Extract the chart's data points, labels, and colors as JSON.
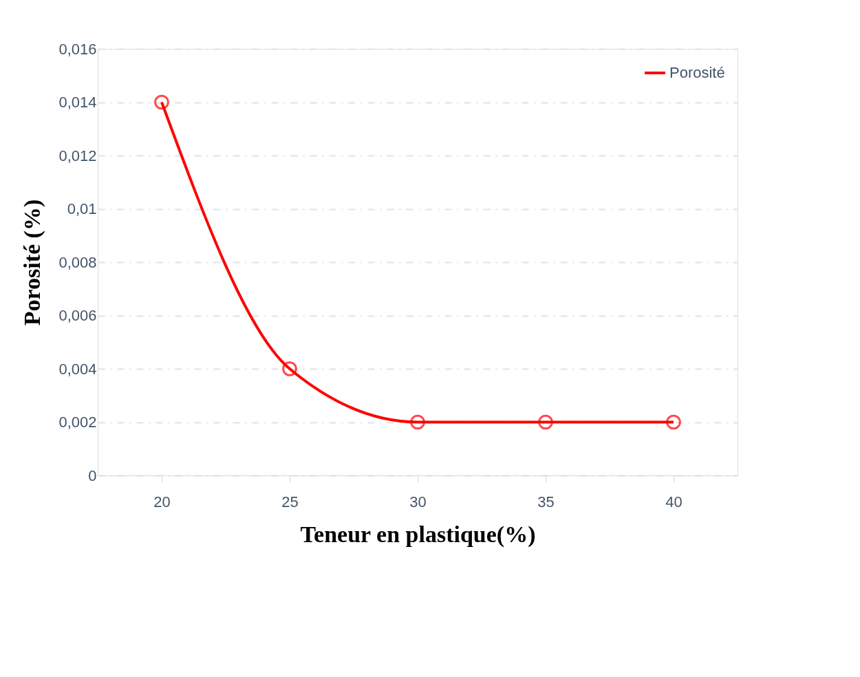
{
  "chart_data": {
    "type": "line",
    "xlabel": "Teneur en plastique(%)",
    "ylabel": "Porosité (%)",
    "categories": [
      "20",
      "25",
      "30",
      "35",
      "40"
    ],
    "series": [
      {
        "name": "Porosité",
        "color": "#ff0000",
        "values": [
          0.014,
          0.004,
          0.002,
          0.002,
          0.002
        ]
      }
    ],
    "ylim": [
      0,
      0.016
    ],
    "yticks": [
      0,
      {
        "value": 0.002,
        "label": "0,002"
      },
      {
        "value": 0.004,
        "label": "0,004"
      },
      {
        "value": 0.006,
        "label": "0,006"
      },
      {
        "value": 0.008,
        "label": "0,008"
      },
      {
        "value": 0.01,
        "label": "0,01"
      },
      {
        "value": 0.012,
        "label": "0,012"
      },
      {
        "value": 0.014,
        "label": "0,014"
      },
      {
        "value": 0.016,
        "label": "0,016"
      }
    ],
    "grid": "y",
    "legend": "top right",
    "marker": "circle",
    "line_style": "solid"
  }
}
